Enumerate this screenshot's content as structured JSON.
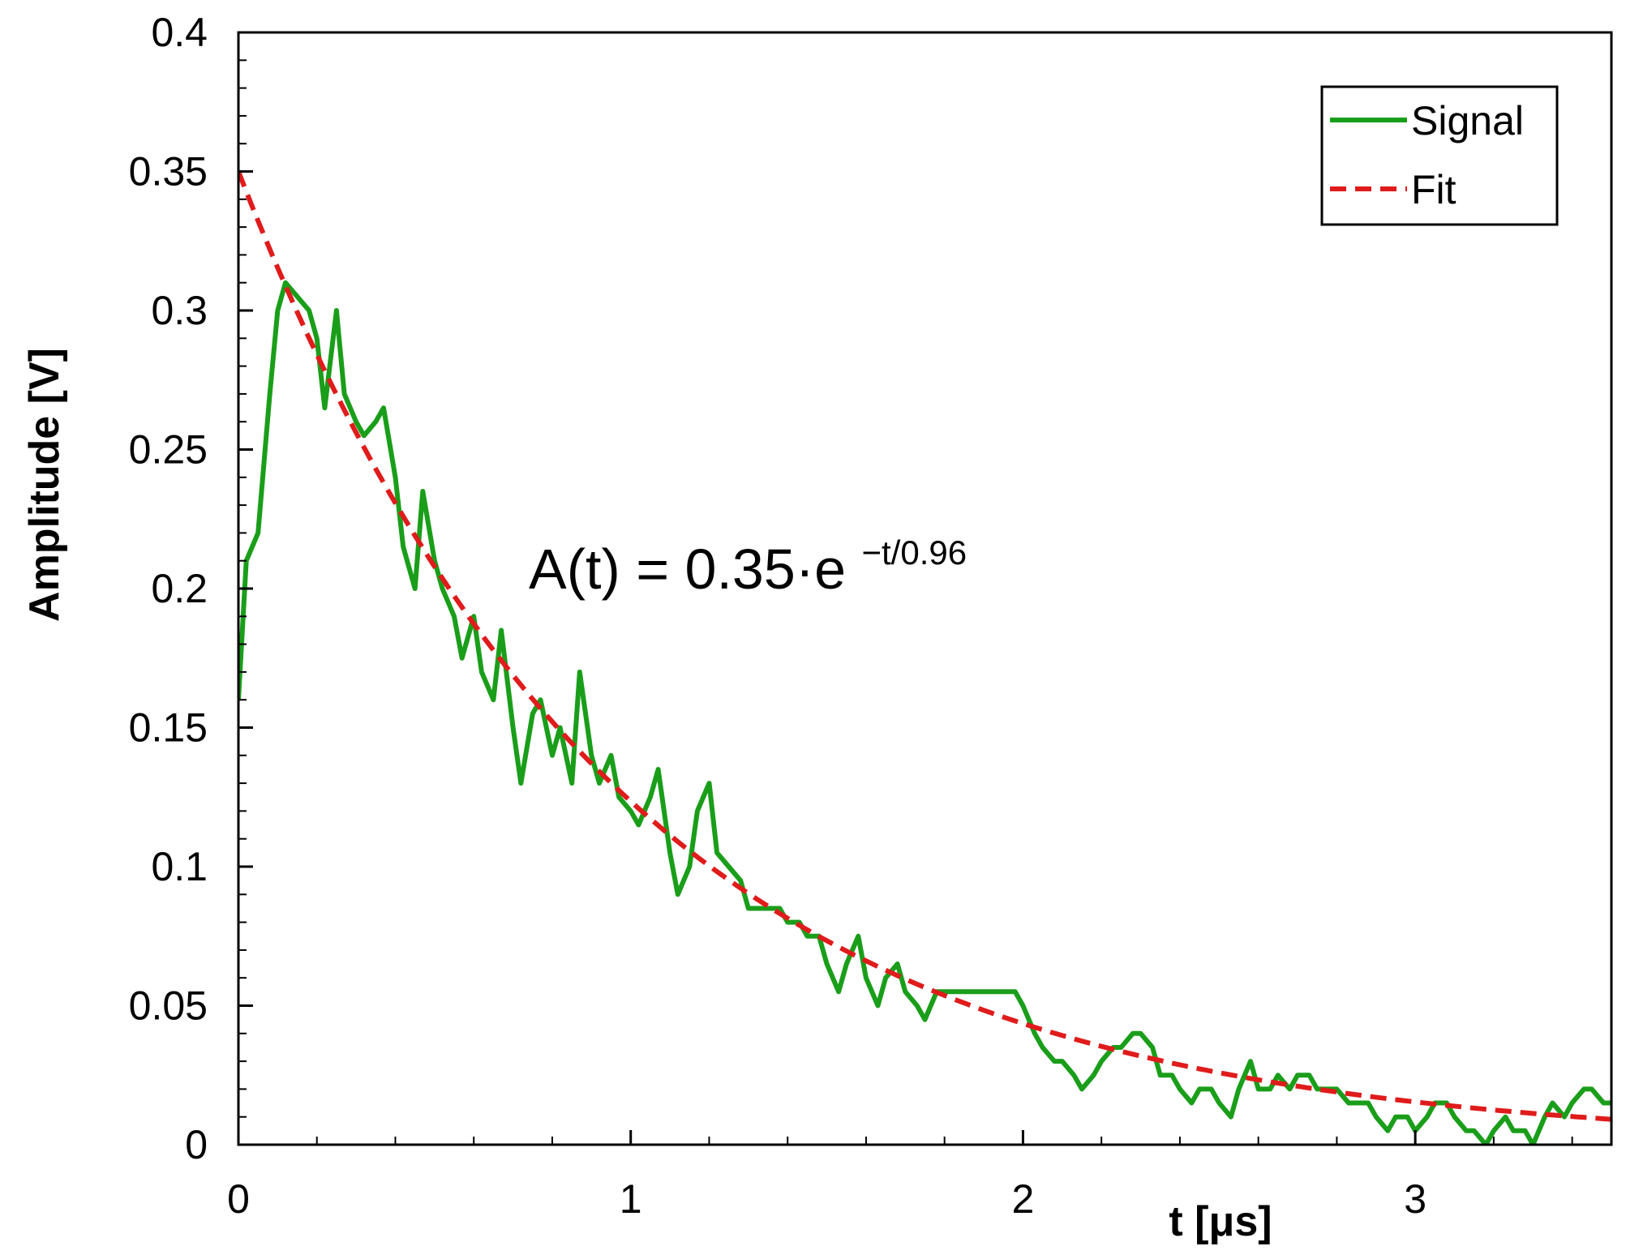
{
  "chart_data": {
    "type": "line",
    "xlabel": "t [μs]",
    "ylabel": "Amplitude [V]",
    "xlim": [
      0,
      3.5
    ],
    "ylim": [
      0,
      0.4
    ],
    "x_ticks": [
      "0",
      "1",
      "2",
      "3"
    ],
    "x_tick_values": [
      0,
      1,
      2,
      3
    ],
    "y_ticks": [
      "0",
      "0.05",
      "0.1",
      "0.15",
      "0.2",
      "0.25",
      "0.3",
      "0.35",
      "0.4"
    ],
    "y_tick_values": [
      0,
      0.05,
      0.1,
      0.15,
      0.2,
      0.25,
      0.3,
      0.35,
      0.4
    ],
    "x_minor_step": 0.2,
    "y_minor_step": 0.01,
    "grid": false,
    "legend_position": "top-right",
    "annotation": {
      "text": "A(t) = 0.35·e",
      "superscript": "−t/0.96"
    },
    "series": [
      {
        "name": "Signal",
        "color": "#1a9e1a",
        "style": "solid",
        "x": [
          0,
          0.02,
          0.05,
          0.08,
          0.1,
          0.12,
          0.15,
          0.18,
          0.2,
          0.22,
          0.25,
          0.27,
          0.3,
          0.32,
          0.35,
          0.37,
          0.4,
          0.42,
          0.45,
          0.47,
          0.5,
          0.52,
          0.55,
          0.57,
          0.6,
          0.62,
          0.65,
          0.67,
          0.7,
          0.72,
          0.75,
          0.77,
          0.8,
          0.82,
          0.85,
          0.87,
          0.9,
          0.92,
          0.95,
          0.97,
          1.0,
          1.02,
          1.05,
          1.07,
          1.1,
          1.12,
          1.15,
          1.17,
          1.2,
          1.22,
          1.25,
          1.28,
          1.3,
          1.33,
          1.35,
          1.38,
          1.4,
          1.43,
          1.45,
          1.48,
          1.5,
          1.53,
          1.55,
          1.58,
          1.6,
          1.63,
          1.65,
          1.68,
          1.7,
          1.73,
          1.75,
          1.78,
          1.8,
          1.83,
          1.85,
          1.88,
          1.9,
          1.93,
          1.95,
          1.98,
          2.0,
          2.03,
          2.05,
          2.08,
          2.1,
          2.13,
          2.15,
          2.18,
          2.2,
          2.23,
          2.25,
          2.28,
          2.3,
          2.33,
          2.35,
          2.38,
          2.4,
          2.43,
          2.45,
          2.48,
          2.5,
          2.53,
          2.55,
          2.58,
          2.6,
          2.63,
          2.65,
          2.68,
          2.7,
          2.73,
          2.75,
          2.78,
          2.8,
          2.83,
          2.85,
          2.88,
          2.9,
          2.93,
          2.95,
          2.98,
          3.0,
          3.03,
          3.05,
          3.08,
          3.1,
          3.13,
          3.15,
          3.18,
          3.2,
          3.23,
          3.25,
          3.28,
          3.3,
          3.33,
          3.35,
          3.38,
          3.4,
          3.43,
          3.45,
          3.48,
          3.5
        ],
        "values": [
          0.16,
          0.21,
          0.22,
          0.27,
          0.3,
          0.31,
          0.305,
          0.3,
          0.29,
          0.265,
          0.3,
          0.27,
          0.26,
          0.255,
          0.26,
          0.265,
          0.24,
          0.215,
          0.2,
          0.235,
          0.21,
          0.2,
          0.19,
          0.175,
          0.19,
          0.17,
          0.16,
          0.185,
          0.15,
          0.13,
          0.155,
          0.16,
          0.14,
          0.15,
          0.13,
          0.17,
          0.14,
          0.13,
          0.14,
          0.125,
          0.12,
          0.115,
          0.125,
          0.135,
          0.105,
          0.09,
          0.1,
          0.12,
          0.13,
          0.105,
          0.1,
          0.095,
          0.085,
          0.085,
          0.085,
          0.085,
          0.08,
          0.08,
          0.075,
          0.075,
          0.065,
          0.055,
          0.065,
          0.075,
          0.06,
          0.05,
          0.06,
          0.065,
          0.055,
          0.05,
          0.045,
          0.055,
          0.055,
          0.055,
          0.055,
          0.055,
          0.055,
          0.055,
          0.055,
          0.055,
          0.05,
          0.04,
          0.035,
          0.03,
          0.03,
          0.025,
          0.02,
          0.025,
          0.03,
          0.035,
          0.035,
          0.04,
          0.04,
          0.035,
          0.025,
          0.025,
          0.02,
          0.015,
          0.02,
          0.02,
          0.015,
          0.01,
          0.02,
          0.03,
          0.02,
          0.02,
          0.025,
          0.02,
          0.025,
          0.025,
          0.02,
          0.02,
          0.02,
          0.015,
          0.015,
          0.015,
          0.01,
          0.005,
          0.01,
          0.01,
          0.005,
          0.01,
          0.015,
          0.015,
          0.01,
          0.005,
          0.005,
          0.0,
          0.005,
          0.01,
          0.005,
          0.005,
          0.0,
          0.01,
          0.015,
          0.01,
          0.015,
          0.02,
          0.02,
          0.015,
          0.015
        ]
      },
      {
        "name": "Fit",
        "color": "#e01b1b",
        "style": "dashed",
        "function": "0.35*exp(-t/0.96)"
      }
    ]
  }
}
